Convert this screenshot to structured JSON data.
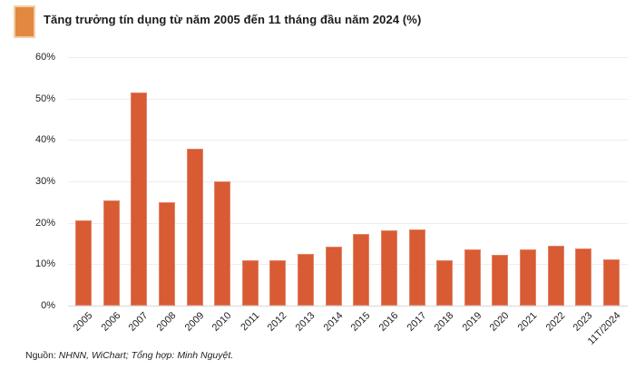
{
  "header": {
    "title": "Tăng trưởng tín dụng từ năm 2005 đến 11 tháng đầu năm 2024 (%)"
  },
  "footer": {
    "source_label": "Nguồn:",
    "source_credit": " NHNN, WiChart; Tổng hợp: Minh Nguyệt."
  },
  "colors": {
    "bar": "#D85B33",
    "legend_swatch": "#E28840",
    "legend_swatch_border": "#F3CFA7",
    "gridline": "#EDEDED",
    "axis_line": "#D8D8D8",
    "text": "#222222"
  },
  "chart_data": {
    "type": "bar",
    "title": "Tăng trưởng tín dụng từ năm 2005 đến 11 tháng đầu năm 2024 (%)",
    "categories": [
      "2005",
      "2006",
      "2007",
      "2008",
      "2009",
      "2010",
      "2011",
      "2012",
      "2013",
      "2014",
      "2015",
      "2016",
      "2017",
      "2018",
      "2019",
      "2020",
      "2021",
      "2022",
      "2023",
      "11T/2024"
    ],
    "values": [
      20.5,
      25.4,
      51.5,
      25.0,
      37.8,
      29.9,
      10.9,
      10.9,
      12.5,
      14.2,
      17.3,
      18.2,
      18.4,
      10.9,
      13.6,
      12.2,
      13.6,
      14.4,
      13.8,
      11.1
    ],
    "xlabel": "",
    "ylabel": "",
    "ylim": [
      0,
      60
    ],
    "ytick_step": 10,
    "yticks": [
      "0%",
      "10%",
      "20%",
      "30%",
      "40%",
      "50%",
      "60%"
    ],
    "grid": true,
    "legend_position": "top-left",
    "bar_color": "#D85B33"
  }
}
